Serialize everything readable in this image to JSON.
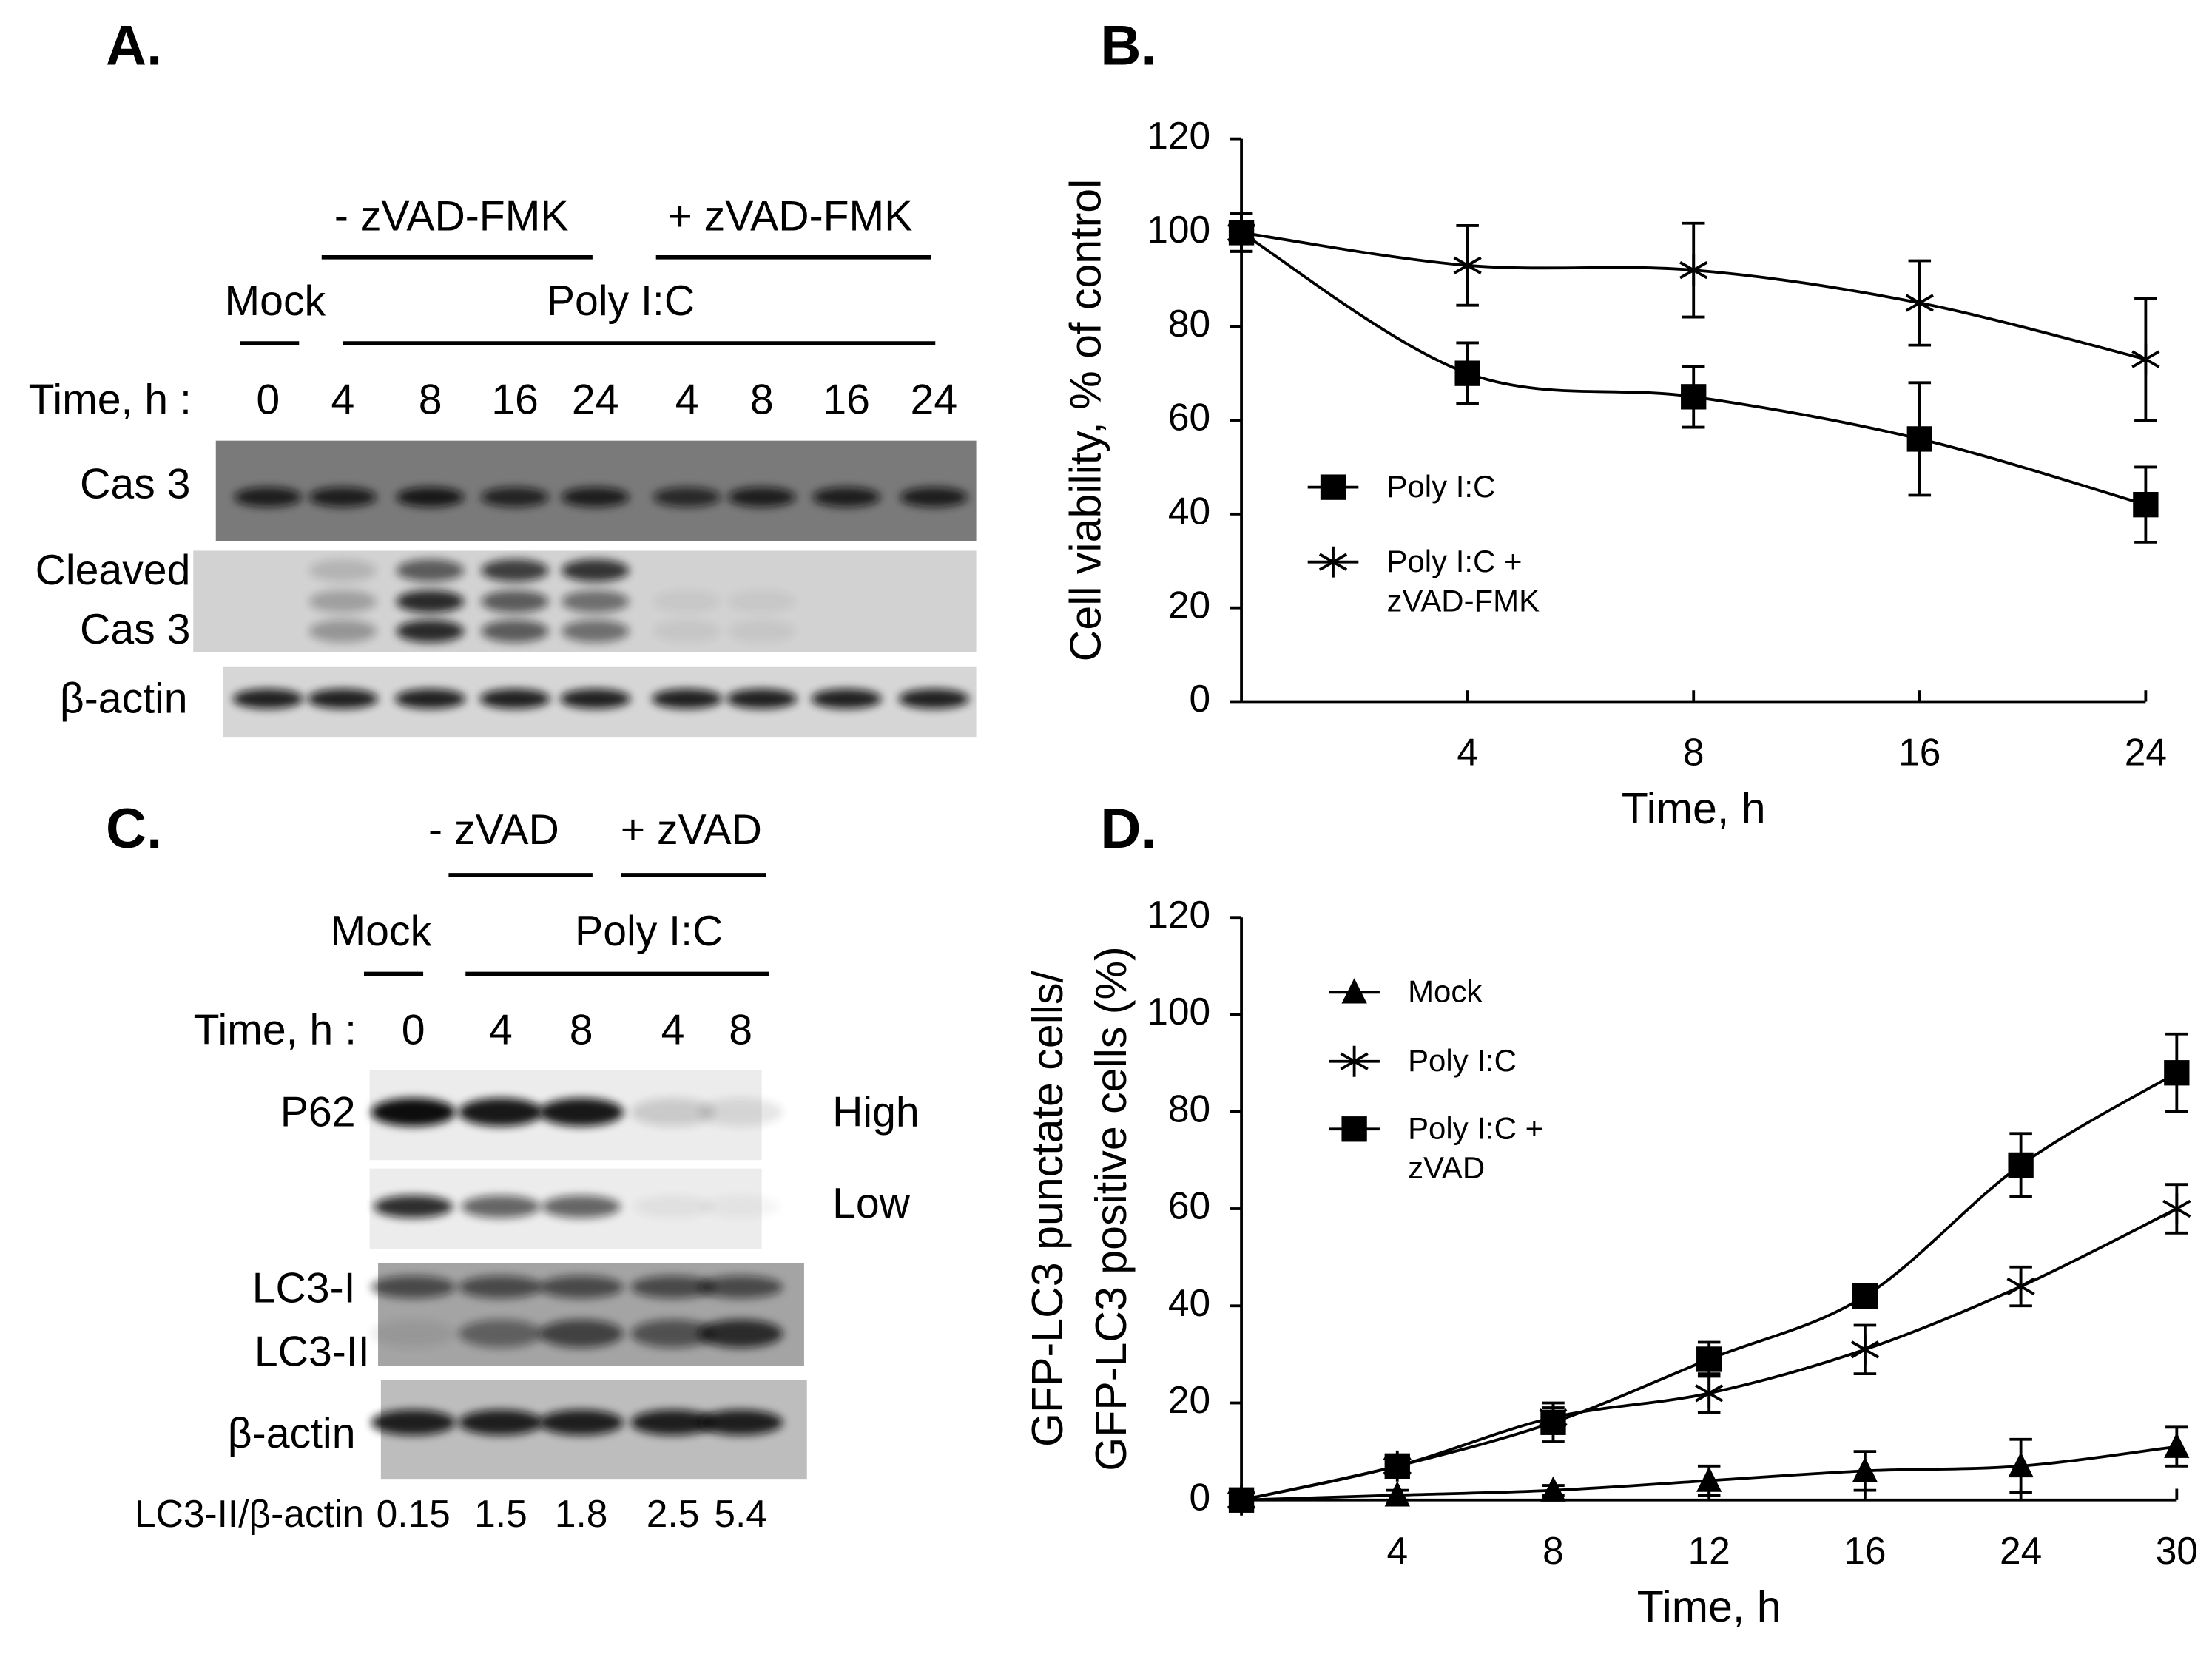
{
  "panel_labels": [
    "A.",
    "B.",
    "C.",
    "D."
  ],
  "blot_a": {
    "groups": [
      "- zVAD-FMK",
      "+ zVAD-FMK"
    ],
    "treatments": [
      "Mock",
      "Poly I:C"
    ],
    "time_label": "Time, h :",
    "lanes": [
      "0",
      "4",
      "8",
      "16",
      "24",
      "4",
      "8",
      "16",
      "24"
    ],
    "rows": [
      "Cas 3",
      "Cleaved",
      "Cas 3",
      "β-actin"
    ]
  },
  "blot_c": {
    "groups": [
      "- zVAD",
      "+ zVAD"
    ],
    "treatments": [
      "Mock",
      "Poly I:C"
    ],
    "time_label": "Time, h :",
    "lanes": [
      "0",
      "4",
      "8",
      "4",
      "8"
    ],
    "rows": [
      "P62",
      "LC3-I",
      "LC3-II",
      "β-actin"
    ],
    "exposures": [
      "High",
      "Low"
    ],
    "ratio_label": "LC3-II/β-actin",
    "ratios": [
      0.15,
      1.5,
      1.8,
      2.5,
      5.4
    ]
  },
  "chart_data": [
    {
      "type": "line",
      "smooth": true,
      "xlabel": "Time, h",
      "ylabel": "Cell viability, % of control",
      "categories": [
        null,
        "4",
        "8",
        "16",
        "24"
      ],
      "ylim": [
        0,
        120
      ],
      "yticks": [
        0,
        20,
        40,
        60,
        80,
        100,
        120
      ],
      "series": [
        {
          "name": "Poly I:C",
          "color": "#000000",
          "marker": "square",
          "values": [
            100,
            70,
            65,
            56,
            42
          ],
          "errors": [
            4,
            6.5,
            6.5,
            12,
            8
          ]
        },
        {
          "name": "Poly I:C + zVAD-FMK",
          "color": "#000000",
          "marker": "asterisk",
          "values": [
            100,
            93,
            92,
            85,
            73
          ],
          "errors": [
            4,
            8.5,
            10,
            9,
            13
          ]
        }
      ]
    },
    {
      "type": "line",
      "smooth": true,
      "xlabel": "Time, h",
      "ylabel": [
        "GFP-LC3 punctate cells/",
        "GFP-LC3 positive cells (%)"
      ],
      "categories": [
        null,
        "4",
        "8",
        "12",
        "16",
        "24",
        "30"
      ],
      "ylim": [
        0,
        120
      ],
      "yticks": [
        0,
        20,
        40,
        60,
        80,
        100,
        120
      ],
      "series": [
        {
          "name": "Mock",
          "color": "#000000",
          "marker": "triangle",
          "values": [
            0,
            1,
            2,
            4,
            6,
            7,
            11
          ],
          "errors": [
            0.5,
            1,
            1,
            3,
            4,
            5.5,
            4
          ]
        },
        {
          "name": "Poly I:C",
          "color": "#000000",
          "marker": "asterisk",
          "values": [
            0,
            7,
            17,
            22,
            31,
            44,
            60
          ],
          "errors": [
            1,
            2,
            2,
            4,
            5,
            4,
            5
          ]
        },
        {
          "name": "Poly I:C + zVAD",
          "color": "#000000",
          "marker": "square",
          "values": [
            0,
            7,
            16,
            29,
            42,
            69,
            88
          ],
          "errors": [
            1,
            2,
            4,
            3.5,
            2,
            6.5,
            8
          ]
        }
      ]
    }
  ]
}
